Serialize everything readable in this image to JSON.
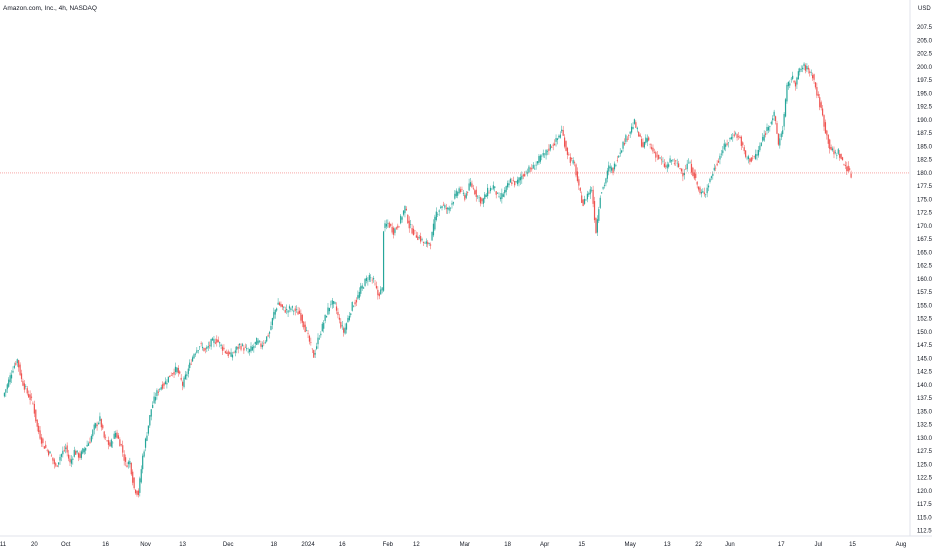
{
  "chart_data": {
    "type": "candlestick",
    "title": "Amazon.com, Inc., 4h, NASDAQ",
    "currency": "USD",
    "ylim": [
      112.5,
      210
    ],
    "y_ticks": [
      "112.50",
      "115.00",
      "117.50",
      "120.00",
      "122.50",
      "125.00",
      "127.50",
      "130.00",
      "132.50",
      "135.00",
      "137.50",
      "140.00",
      "142.50",
      "145.00",
      "147.50",
      "150.00",
      "152.50",
      "155.00",
      "157.50",
      "160.00",
      "162.50",
      "165.00",
      "167.50",
      "170.00",
      "172.50",
      "175.00",
      "177.50",
      "180.00",
      "182.50",
      "185.00",
      "187.50",
      "190.00",
      "192.50",
      "195.00",
      "197.50",
      "200.00",
      "202.50",
      "205.00",
      "207.50"
    ],
    "x_ticks": [
      "11",
      "20",
      "Oct",
      "16",
      "Nov",
      "13",
      "Dec",
      "18",
      "2024",
      "16",
      "Feb",
      "12",
      "Mar",
      "18",
      "Apr",
      "15",
      "May",
      "13",
      "22",
      "Jun",
      "17",
      "Jul",
      "15",
      "Aug"
    ],
    "x_tick_bars": [
      0,
      22,
      44,
      72,
      100,
      126,
      158,
      190,
      214,
      238,
      270,
      290,
      324,
      354,
      380,
      406,
      440,
      466,
      488,
      510,
      546,
      572,
      596,
      630
    ],
    "bars_total": 600,
    "grid": false,
    "up_color": "#26a69a",
    "down_color": "#ef5350",
    "last_price_line": 180.0,
    "anchors": [
      [
        0,
        137.8
      ],
      [
        3,
        140.0
      ],
      [
        7,
        143.2
      ],
      [
        10,
        144.8
      ],
      [
        13,
        141.0
      ],
      [
        17,
        138.5
      ],
      [
        21,
        136.5
      ],
      [
        24,
        132.0
      ],
      [
        28,
        128.8
      ],
      [
        33,
        127.0
      ],
      [
        37,
        124.5
      ],
      [
        40,
        126.5
      ],
      [
        44,
        128.2
      ],
      [
        47,
        125.2
      ],
      [
        50,
        127.5
      ],
      [
        54,
        126.5
      ],
      [
        57,
        128.0
      ],
      [
        61,
        129.5
      ],
      [
        64,
        132.0
      ],
      [
        68,
        133.5
      ],
      [
        71,
        130.0
      ],
      [
        75,
        128.5
      ],
      [
        79,
        131.0
      ],
      [
        83,
        128.5
      ],
      [
        86,
        125.0
      ],
      [
        89,
        125.5
      ],
      [
        92,
        120.5
      ],
      [
        95,
        119.5
      ],
      [
        98,
        126.5
      ],
      [
        101,
        131.0
      ],
      [
        104,
        135.5
      ],
      [
        107,
        138.0
      ],
      [
        110,
        139.5
      ],
      [
        114,
        140.5
      ],
      [
        118,
        142.2
      ],
      [
        122,
        143.0
      ],
      [
        126,
        140.0
      ],
      [
        130,
        143.0
      ],
      [
        134,
        146.0
      ],
      [
        138,
        147.5
      ],
      [
        142,
        146.5
      ],
      [
        146,
        148.0
      ],
      [
        150,
        148.5
      ],
      [
        154,
        147.0
      ],
      [
        157,
        146.0
      ],
      [
        160,
        145.5
      ],
      [
        163,
        146.5
      ],
      [
        166,
        147.5
      ],
      [
        169,
        147.0
      ],
      [
        172,
        146.2
      ],
      [
        175,
        147.0
      ],
      [
        178,
        148.2
      ],
      [
        181,
        147.5
      ],
      [
        184,
        148.5
      ],
      [
        187,
        150.0
      ],
      [
        190,
        153.5
      ],
      [
        193,
        155.5
      ],
      [
        196,
        154.5
      ],
      [
        199,
        154.0
      ],
      [
        202,
        154.5
      ],
      [
        205,
        154.0
      ],
      [
        208,
        153.5
      ],
      [
        211,
        151.5
      ],
      [
        214,
        149.0
      ],
      [
        218,
        145.5
      ],
      [
        221,
        148.5
      ],
      [
        224,
        151.0
      ],
      [
        227,
        153.5
      ],
      [
        230,
        155.5
      ],
      [
        233,
        155.0
      ],
      [
        236,
        152.0
      ],
      [
        239,
        150.0
      ],
      [
        242,
        152.5
      ],
      [
        245,
        155.0
      ],
      [
        248,
        156.0
      ],
      [
        251,
        158.0
      ],
      [
        254,
        159.5
      ],
      [
        257,
        160.5
      ],
      [
        260,
        159.5
      ],
      [
        263,
        157.0
      ],
      [
        266,
        158.0
      ],
      [
        267,
        169.5
      ],
      [
        270,
        170.5
      ],
      [
        274,
        169.0
      ],
      [
        278,
        170.5
      ],
      [
        282,
        173.5
      ],
      [
        285,
        170.0
      ],
      [
        289,
        168.5
      ],
      [
        293,
        167.5
      ],
      [
        296,
        166.5
      ],
      [
        300,
        167.0
      ],
      [
        304,
        172.5
      ],
      [
        308,
        174.0
      ],
      [
        312,
        173.0
      ],
      [
        316,
        175.0
      ],
      [
        320,
        177.0
      ],
      [
        324,
        175.5
      ],
      [
        328,
        178.0
      ],
      [
        332,
        176.0
      ],
      [
        336,
        174.5
      ],
      [
        340,
        176.5
      ],
      [
        344,
        177.5
      ],
      [
        348,
        175.0
      ],
      [
        352,
        176.5
      ],
      [
        356,
        178.5
      ],
      [
        360,
        178.0
      ],
      [
        364,
        179.5
      ],
      [
        368,
        180.5
      ],
      [
        372,
        181.0
      ],
      [
        376,
        182.5
      ],
      [
        380,
        183.5
      ],
      [
        384,
        185.0
      ],
      [
        388,
        186.0
      ],
      [
        392,
        188.0
      ],
      [
        395,
        184.5
      ],
      [
        398,
        182.5
      ],
      [
        401,
        181.5
      ],
      [
        404,
        177.0
      ],
      [
        407,
        174.0
      ],
      [
        410,
        176.0
      ],
      [
        413,
        177.0
      ],
      [
        416,
        169.0
      ],
      [
        419,
        176.0
      ],
      [
        422,
        178.0
      ],
      [
        425,
        181.0
      ],
      [
        428,
        180.5
      ],
      [
        431,
        183.0
      ],
      [
        435,
        185.5
      ],
      [
        439,
        187.5
      ],
      [
        443,
        189.5
      ],
      [
        446,
        187.0
      ],
      [
        449,
        185.0
      ],
      [
        452,
        186.5
      ],
      [
        455,
        184.5
      ],
      [
        458,
        183.5
      ],
      [
        461,
        182.5
      ],
      [
        465,
        181.0
      ],
      [
        469,
        182.5
      ],
      [
        473,
        181.5
      ],
      [
        477,
        180.0
      ],
      [
        481,
        182.0
      ],
      [
        485,
        179.5
      ],
      [
        489,
        176.0
      ],
      [
        493,
        176.5
      ],
      [
        497,
        179.5
      ],
      [
        501,
        182.0
      ],
      [
        505,
        184.5
      ],
      [
        509,
        186.0
      ],
      [
        513,
        187.5
      ],
      [
        517,
        186.5
      ],
      [
        521,
        183.0
      ],
      [
        525,
        182.5
      ],
      [
        529,
        183.5
      ],
      [
        533,
        186.5
      ],
      [
        537,
        189.0
      ],
      [
        541,
        191.0
      ],
      [
        544,
        185.5
      ],
      [
        547,
        188.5
      ],
      [
        550,
        196.0
      ],
      [
        553,
        198.0
      ],
      [
        556,
        197.0
      ],
      [
        559,
        199.5
      ],
      [
        562,
        200.0
      ],
      [
        565,
        199.5
      ],
      [
        568,
        198.5
      ],
      [
        571,
        195.0
      ],
      [
        574,
        192.0
      ],
      [
        577,
        188.0
      ],
      [
        580,
        185.0
      ],
      [
        583,
        183.5
      ],
      [
        586,
        184.0
      ],
      [
        589,
        182.0
      ],
      [
        592,
        181.0
      ],
      [
        595,
        179.5
      ]
    ]
  }
}
